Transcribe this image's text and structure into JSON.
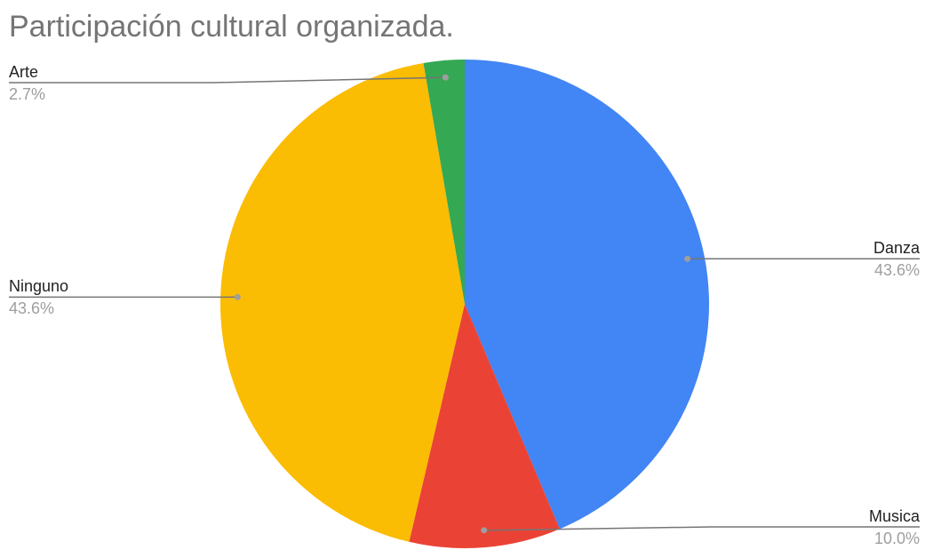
{
  "chart_data": {
    "type": "pie",
    "title": "Participación cultural organizada.",
    "categories": [
      "Danza",
      "Musica",
      "Ninguno",
      "Arte"
    ],
    "values": [
      43.6,
      10.0,
      43.6,
      2.7
    ],
    "value_labels": [
      "43.6%",
      "10.0%",
      "43.6%",
      "2.7%"
    ],
    "colors": [
      "#4285f4",
      "#ea4335",
      "#fbbc04",
      "#34a853"
    ]
  }
}
